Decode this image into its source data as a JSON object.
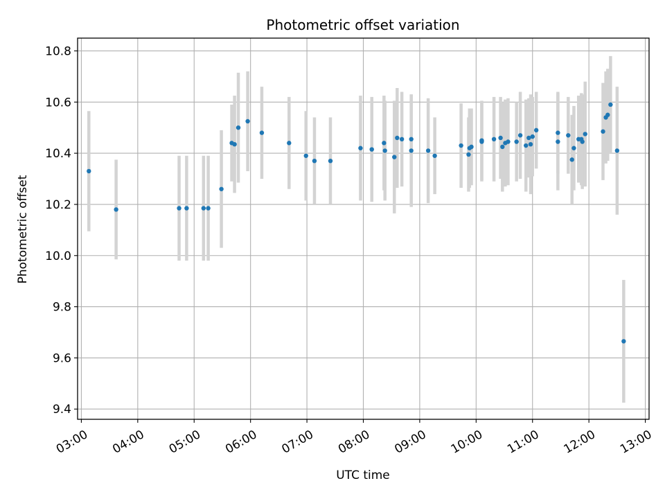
{
  "chart_data": {
    "type": "scatter",
    "title": "Photometric offset variation",
    "xlabel": "UTC time",
    "ylabel": "Photometric offset",
    "x_ticks": [
      "03:00",
      "04:00",
      "05:00",
      "06:00",
      "07:00",
      "08:00",
      "09:00",
      "10:00",
      "11:00",
      "12:00",
      "13:00"
    ],
    "y_ticks": [
      "9.4",
      "9.6",
      "9.8",
      "10.0",
      "10.2",
      "10.4",
      "10.6",
      "10.8"
    ],
    "xlim": [
      "02:56",
      "13:04"
    ],
    "ylim": [
      9.36,
      10.85
    ],
    "grid": true,
    "colors": {
      "point": "#1f77b4",
      "errorbar": "#d3d3d3",
      "grid": "#b0b0b0"
    },
    "series": [
      {
        "x": [
          "03:08",
          "03:37",
          "04:44",
          "04:52",
          "05:10",
          "05:15",
          "05:29",
          "05:40",
          "05:43",
          "05:47",
          "05:57",
          "06:12",
          "06:41",
          "06:59",
          "07:08",
          "07:25",
          "07:57",
          "08:09",
          "08:22",
          "08:23",
          "08:33",
          "08:36",
          "08:41",
          "08:51",
          "08:51",
          "09:09",
          "09:16",
          "09:44",
          "09:52",
          "09:53",
          "09:55",
          "10:06",
          "10:06",
          "10:19",
          "10:26",
          "10:28",
          "10:31",
          "10:34",
          "10:43",
          "10:47",
          "10:53",
          "10:56",
          "10:58",
          "11:00",
          "11:04",
          "11:27",
          "11:27",
          "11:38",
          "11:42",
          "11:44",
          "11:49",
          "11:52",
          "11:53",
          "11:56",
          "12:15",
          "12:18",
          "12:20",
          "12:23",
          "12:30",
          "12:37"
        ],
        "y": [
          10.33,
          10.18,
          10.185,
          10.185,
          10.185,
          10.185,
          10.26,
          10.44,
          10.435,
          10.5,
          10.525,
          10.48,
          10.44,
          10.39,
          10.37,
          10.37,
          10.42,
          10.415,
          10.44,
          10.41,
          10.385,
          10.46,
          10.455,
          10.41,
          10.455,
          10.41,
          10.39,
          10.43,
          10.395,
          10.42,
          10.425,
          10.445,
          10.45,
          10.455,
          10.46,
          10.425,
          10.44,
          10.445,
          10.445,
          10.47,
          10.43,
          10.46,
          10.435,
          10.465,
          10.49,
          10.445,
          10.48,
          10.47,
          10.375,
          10.42,
          10.455,
          10.455,
          10.445,
          10.475,
          10.485,
          10.54,
          10.55,
          10.59,
          10.41,
          9.665
        ],
        "yerr": [
          0.235,
          0.195,
          0.205,
          0.205,
          0.205,
          0.205,
          0.23,
          0.15,
          0.19,
          0.215,
          0.195,
          0.18,
          0.18,
          0.175,
          0.17,
          0.17,
          0.205,
          0.205,
          0.185,
          0.195,
          0.22,
          0.195,
          0.185,
          0.22,
          0.175,
          0.205,
          0.15,
          0.165,
          0.145,
          0.155,
          0.15,
          0.155,
          0.155,
          0.165,
          0.16,
          0.175,
          0.17,
          0.17,
          0.155,
          0.17,
          0.18,
          0.155,
          0.195,
          0.155,
          0.15,
          0.19,
          0.16,
          0.15,
          0.175,
          0.165,
          0.17,
          0.18,
          0.185,
          0.205,
          0.19,
          0.18,
          0.18,
          0.19,
          0.25,
          0.24
        ]
      }
    ]
  }
}
